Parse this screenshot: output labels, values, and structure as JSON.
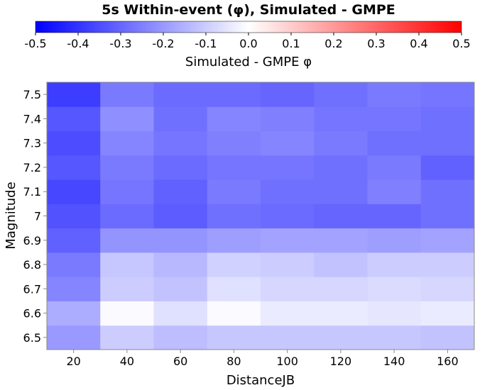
{
  "chart_data": {
    "type": "heatmap",
    "title": "5s Within-event (φ), Simulated - GMPE",
    "xlabel": "DistanceJB",
    "ylabel": "Magnitude",
    "x": [
      20,
      40,
      60,
      80,
      100,
      120,
      140,
      160
    ],
    "x_bin_edges": [
      10,
      30,
      50,
      70,
      90,
      110,
      130,
      150,
      170
    ],
    "y": [
      6.5,
      6.6,
      6.7,
      6.8,
      6.9,
      7.0,
      7.1,
      7.2,
      7.3,
      7.4,
      7.5
    ],
    "xticks": [
      "20",
      "40",
      "60",
      "80",
      "100",
      "120",
      "140",
      "160"
    ],
    "yticks": [
      "6.5",
      "6.6",
      "6.7",
      "6.8",
      "6.9",
      "7",
      "7.1",
      "7.2",
      "7.3",
      "7.4",
      "7.5"
    ],
    "values": [
      [
        -0.2,
        -0.1,
        -0.13,
        -0.11,
        -0.11,
        -0.11,
        -0.11,
        -0.12
      ],
      [
        -0.16,
        -0.01,
        -0.06,
        -0.01,
        -0.04,
        -0.04,
        -0.05,
        -0.04
      ],
      [
        -0.24,
        -0.1,
        -0.12,
        -0.06,
        -0.08,
        -0.08,
        -0.07,
        -0.08
      ],
      [
        -0.26,
        -0.11,
        -0.14,
        -0.09,
        -0.1,
        -0.12,
        -0.1,
        -0.1
      ],
      [
        -0.31,
        -0.21,
        -0.21,
        -0.19,
        -0.18,
        -0.18,
        -0.19,
        -0.18
      ],
      [
        -0.34,
        -0.29,
        -0.32,
        -0.28,
        -0.29,
        -0.3,
        -0.3,
        -0.28
      ],
      [
        -0.36,
        -0.27,
        -0.31,
        -0.26,
        -0.28,
        -0.28,
        -0.25,
        -0.28
      ],
      [
        -0.33,
        -0.26,
        -0.29,
        -0.27,
        -0.27,
        -0.28,
        -0.26,
        -0.31
      ],
      [
        -0.35,
        -0.24,
        -0.27,
        -0.25,
        -0.24,
        -0.26,
        -0.28,
        -0.28
      ],
      [
        -0.33,
        -0.22,
        -0.28,
        -0.24,
        -0.25,
        -0.27,
        -0.27,
        -0.28
      ],
      [
        -0.38,
        -0.26,
        -0.29,
        -0.29,
        -0.3,
        -0.28,
        -0.26,
        -0.27
      ]
    ],
    "colorbar": {
      "label": "Simulated - GMPE φ",
      "range": [
        -0.5,
        0.5
      ],
      "ticks": [
        "-0.5",
        "-0.4",
        "-0.3",
        "-0.2",
        "-0.1",
        "0.0",
        "0.1",
        "0.2",
        "0.3",
        "0.4",
        "0.5"
      ],
      "colors": {
        "low": "#0000ff",
        "mid": "#ffffff",
        "high": "#ff0000"
      }
    },
    "grid": false
  }
}
